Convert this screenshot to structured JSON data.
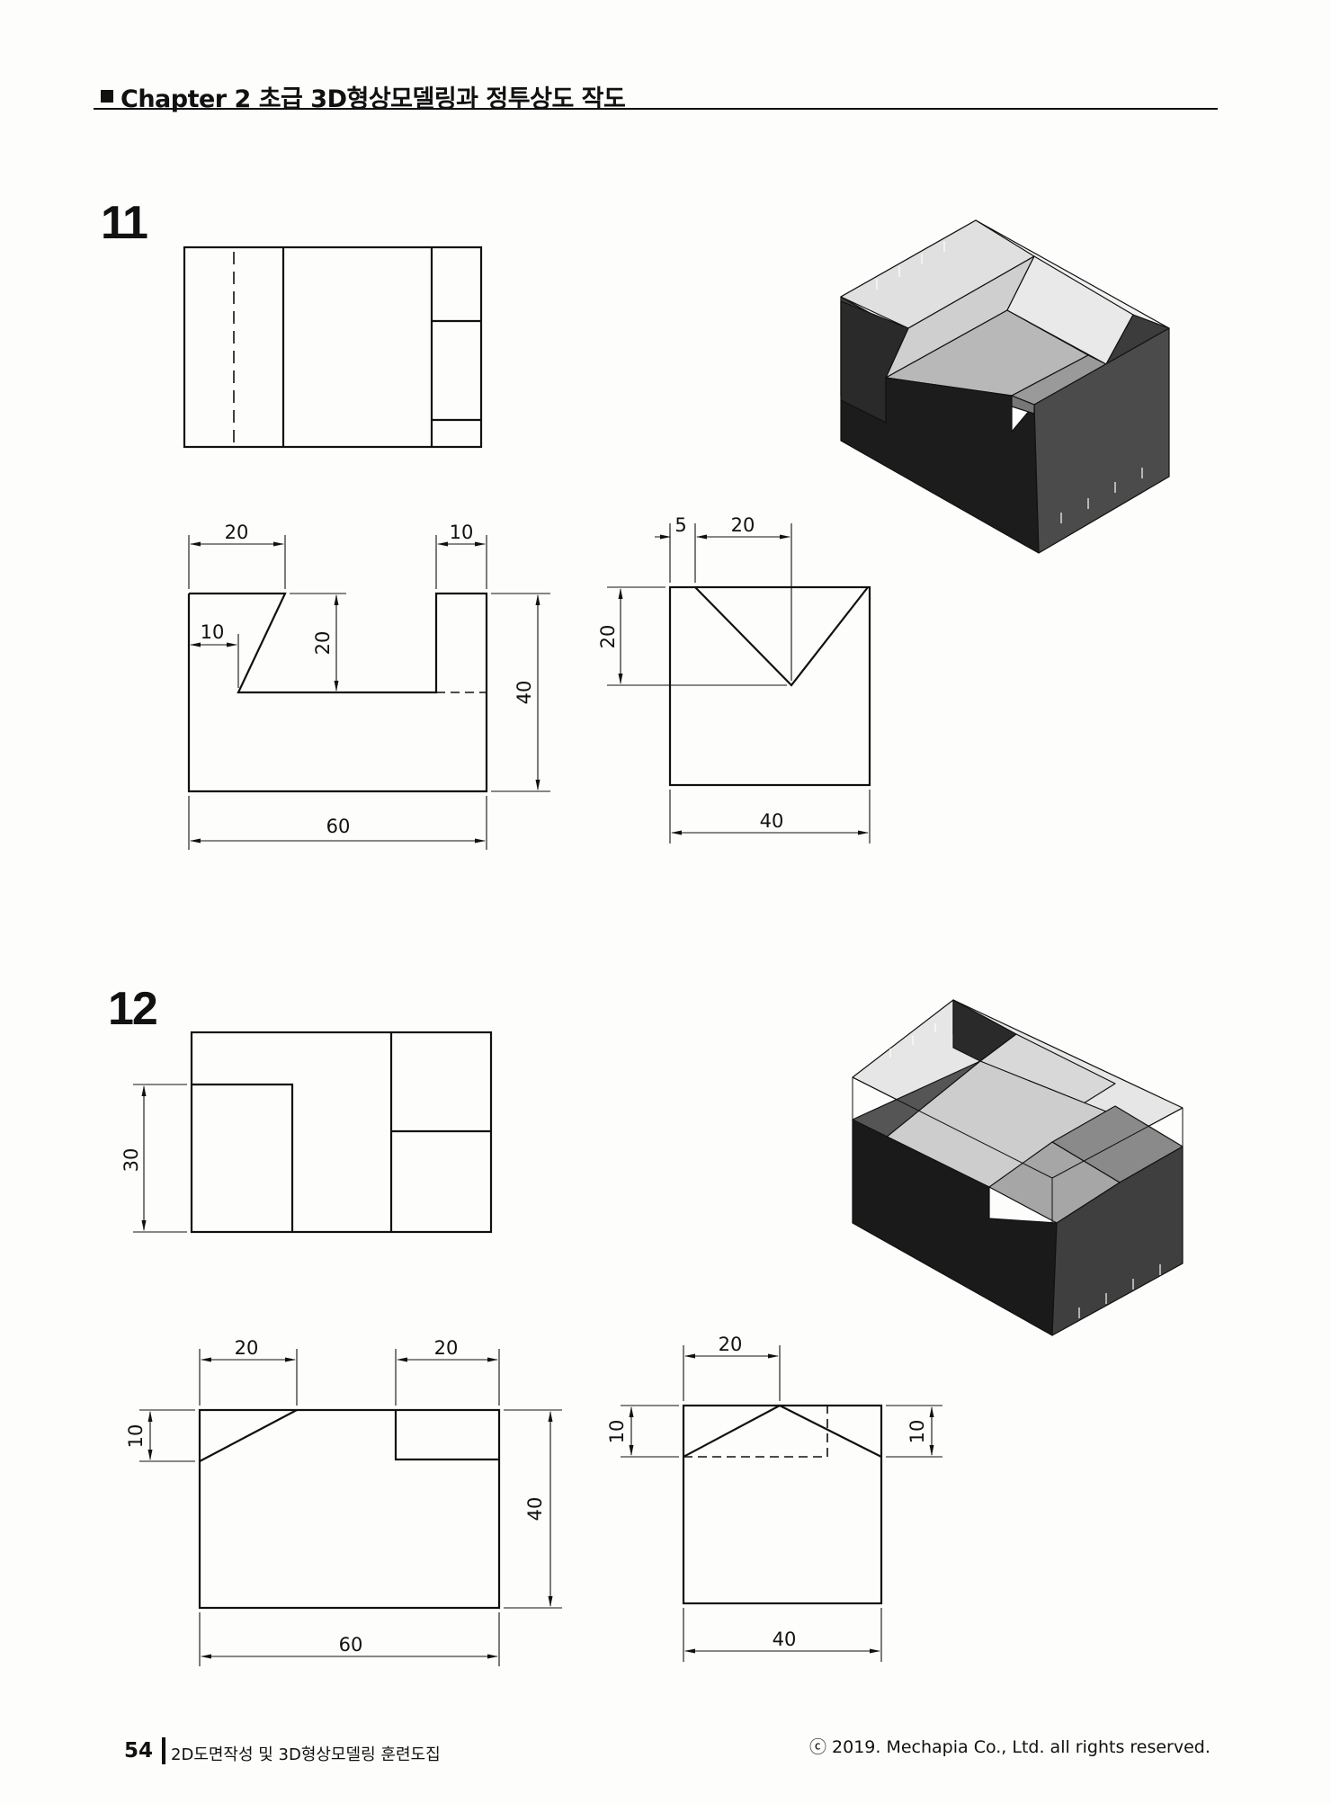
{
  "header": {
    "chapter_title": "Chapter 2 초급 3D형상모델링과 정투상도 작도"
  },
  "problems": [
    {
      "number": "11",
      "front_dims": {
        "top_left": "20",
        "top_right": "10",
        "inner_width": "10",
        "slot_depth": "20",
        "height": "40",
        "width": "60"
      },
      "side_dims": {
        "offset": "5",
        "top_width": "20",
        "v_depth": "20",
        "width": "40"
      }
    },
    {
      "number": "12",
      "top_dims": {
        "left_depth": "30"
      },
      "front_dims": {
        "top_left": "20",
        "top_right": "20",
        "left_height": "10",
        "height": "40",
        "width": "60"
      },
      "side_dims": {
        "top_width": "20",
        "left_height": "10",
        "right_height": "10",
        "width": "40"
      }
    }
  ],
  "footer": {
    "page_number": "54",
    "book_title": "2D도면작성 및 3D형상모델링 훈련도집",
    "copyright": "ⓒ 2019. Mechapia Co., Ltd. all rights reserved."
  }
}
